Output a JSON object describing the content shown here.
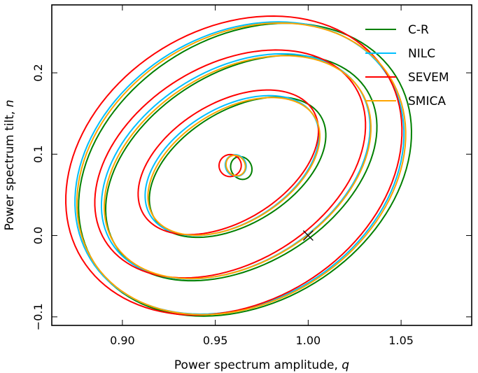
{
  "chart_data": {
    "type": "line",
    "subtype": "contour",
    "title": "",
    "xlabel": "Power spectrum amplitude, q",
    "ylabel": "Power spectrum tilt, n",
    "xlabel_parts": {
      "text": "Power spectrum amplitude, ",
      "symbol": "q"
    },
    "ylabel_parts": {
      "text": "Power spectrum tilt, ",
      "symbol": "n"
    },
    "xlim": [
      0.862,
      1.088
    ],
    "ylim": [
      -0.1105,
      0.2835
    ],
    "xticks": [
      0.9,
      0.95,
      1.0,
      1.05
    ],
    "xtick_labels": [
      "0.90",
      "0.95",
      "1.00",
      "1.05"
    ],
    "yticks": [
      -0.1,
      0.0,
      0.1,
      0.2
    ],
    "ytick_labels": [
      "−0.1",
      "0.0",
      "0.1",
      "0.2"
    ],
    "grid": false,
    "legend_position": "top-right",
    "marker": {
      "symbol": "×",
      "x": 1.0,
      "y": 0.0
    },
    "series": [
      {
        "name": "C-R",
        "color": "#008000",
        "contours": [
          {
            "level": "inner",
            "cx": 0.964,
            "cy": 0.083,
            "rx": 0.0055,
            "ry": 0.0145
          },
          {
            "level": "1",
            "cx": 0.962,
            "cy": 0.084,
            "rx": 0.0525,
            "ry": 0.0695
          },
          {
            "level": "2",
            "cx": 0.964,
            "cy": 0.083,
            "rx": 0.0795,
            "ry": 0.1185
          },
          {
            "level": "3",
            "cx": 0.966,
            "cy": 0.081,
            "rx": 0.0955,
            "ry": 0.1635
          }
        ]
      },
      {
        "name": "NILC",
        "color": "#00bfff",
        "contours": [
          {
            "level": "inner",
            "cx": 0.961,
            "cy": 0.086,
            "rx": 0.0055,
            "ry": 0.0135
          },
          {
            "level": "1",
            "cx": 0.959,
            "cy": 0.086,
            "rx": 0.0515,
            "ry": 0.0705
          },
          {
            "level": "2",
            "cx": 0.961,
            "cy": 0.085,
            "rx": 0.0785,
            "ry": 0.1195
          },
          {
            "level": "3",
            "cx": 0.963,
            "cy": 0.083,
            "rx": 0.094,
            "ry": 0.1645
          }
        ]
      },
      {
        "name": "SEVEM",
        "color": "#ff0000",
        "contours": [
          {
            "level": "inner",
            "cx": 0.958,
            "cy": 0.086,
            "rx": 0.006,
            "ry": 0.0135
          },
          {
            "level": "1",
            "cx": 0.957,
            "cy": 0.09,
            "rx": 0.0535,
            "ry": 0.0725
          },
          {
            "level": "2",
            "cx": 0.958,
            "cy": 0.088,
            "rx": 0.079,
            "ry": 0.1215
          },
          {
            "level": "3",
            "cx": 0.96,
            "cy": 0.086,
            "rx": 0.096,
            "ry": 0.1685
          }
        ]
      },
      {
        "name": "SMICA",
        "color": "#ffa500",
        "contours": [
          {
            "level": "inner",
            "cx": 0.961,
            "cy": 0.086,
            "rx": 0.005,
            "ry": 0.013
          },
          {
            "level": "1",
            "cx": 0.96,
            "cy": 0.085,
            "rx": 0.051,
            "ry": 0.069
          },
          {
            "level": "2",
            "cx": 0.962,
            "cy": 0.084,
            "rx": 0.078,
            "ry": 0.118
          },
          {
            "level": "3",
            "cx": 0.964,
            "cy": 0.082,
            "rx": 0.094,
            "ry": 0.164
          }
        ]
      }
    ]
  }
}
